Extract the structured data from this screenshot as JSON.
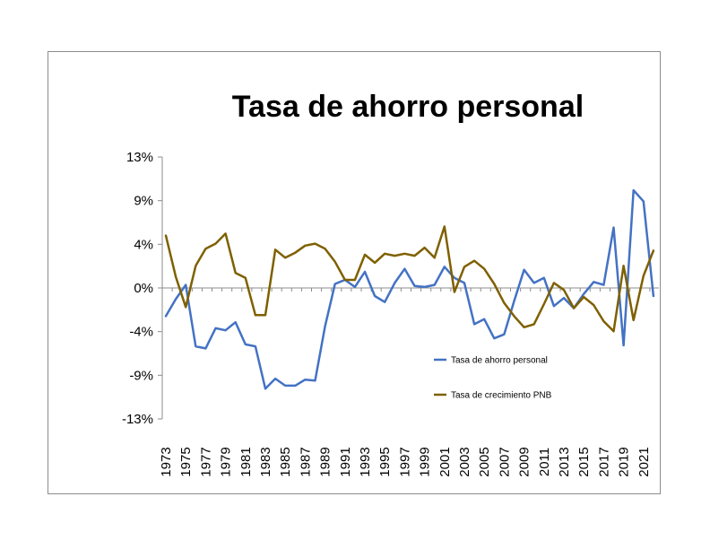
{
  "chart_data": {
    "type": "line",
    "title": "Tasa de ahorro personal",
    "x_tick_labels": [
      "1973",
      "1975",
      "1977",
      "1979",
      "1981",
      "1983",
      "1985",
      "1987",
      "1989",
      "1991",
      "1993",
      "1995",
      "1997",
      "1999",
      "2001",
      "2003",
      "2005",
      "2007",
      "2009",
      "2011",
      "2013",
      "2015",
      "2017",
      "2019",
      "2021"
    ],
    "y_tick_labels": [
      "13%",
      "9%",
      "4%",
      "0%",
      "-4%",
      "-9%",
      "-13%"
    ],
    "y_tick_values": [
      13,
      9,
      4,
      0,
      -4,
      -9,
      -13
    ],
    "ylim": [
      -13,
      13
    ],
    "grid": false,
    "legend": "right-inside",
    "x": [
      1973,
      1974,
      1975,
      1976,
      1977,
      1978,
      1979,
      1980,
      1981,
      1982,
      1983,
      1984,
      1985,
      1986,
      1987,
      1988,
      1989,
      1990,
      1991,
      1992,
      1993,
      1994,
      1995,
      1996,
      1997,
      1998,
      1999,
      2000,
      2001,
      2002,
      2003,
      2004,
      2005,
      2006,
      2007,
      2008,
      2009,
      2010,
      2011,
      2012,
      2013,
      2014,
      2015,
      2016,
      2017,
      2018,
      2019,
      2020,
      2021,
      2022
    ],
    "series": [
      {
        "name": "Tasa de ahorro personal",
        "color": "#4472c4",
        "values": [
          -2.8,
          -1.1,
          0.3,
          -5.8,
          -6.0,
          -4.0,
          -4.2,
          -3.4,
          -5.6,
          -5.8,
          -10.0,
          -9.0,
          -9.7,
          -9.7,
          -9.1,
          -9.2,
          -3.8,
          0.4,
          0.8,
          0.1,
          1.6,
          -0.8,
          -1.4,
          0.5,
          1.9,
          0.2,
          0.1,
          0.3,
          2.1,
          1.0,
          0.5,
          -3.6,
          -3.1,
          -5.0,
          -4.6,
          -1.3,
          1.8,
          0.5,
          1.0,
          -1.8,
          -1.0,
          -2.0,
          -0.6,
          0.6,
          0.3,
          6.0,
          -5.7,
          9.7,
          8.6,
          -0.8
        ]
      },
      {
        "name": "Tasa de crecimiento PNB",
        "color": "#7f6000",
        "values": [
          5.2,
          1.1,
          -1.9,
          2.2,
          3.9,
          4.4,
          5.4,
          1.5,
          1.0,
          -2.7,
          -2.7,
          3.8,
          3.0,
          3.5,
          4.2,
          4.4,
          3.9,
          2.6,
          0.8,
          0.8,
          3.3,
          2.5,
          3.4,
          3.2,
          3.4,
          3.2,
          4.0,
          3.0,
          6.1,
          -0.4,
          2.1,
          2.7,
          1.9,
          0.4,
          -1.5,
          -2.8,
          -3.9,
          -3.6,
          -1.6,
          0.5,
          -0.2,
          -2.0,
          -0.9,
          -1.7,
          -3.3,
          -4.3,
          2.2,
          -3.2,
          1.2,
          3.7
        ]
      }
    ]
  }
}
